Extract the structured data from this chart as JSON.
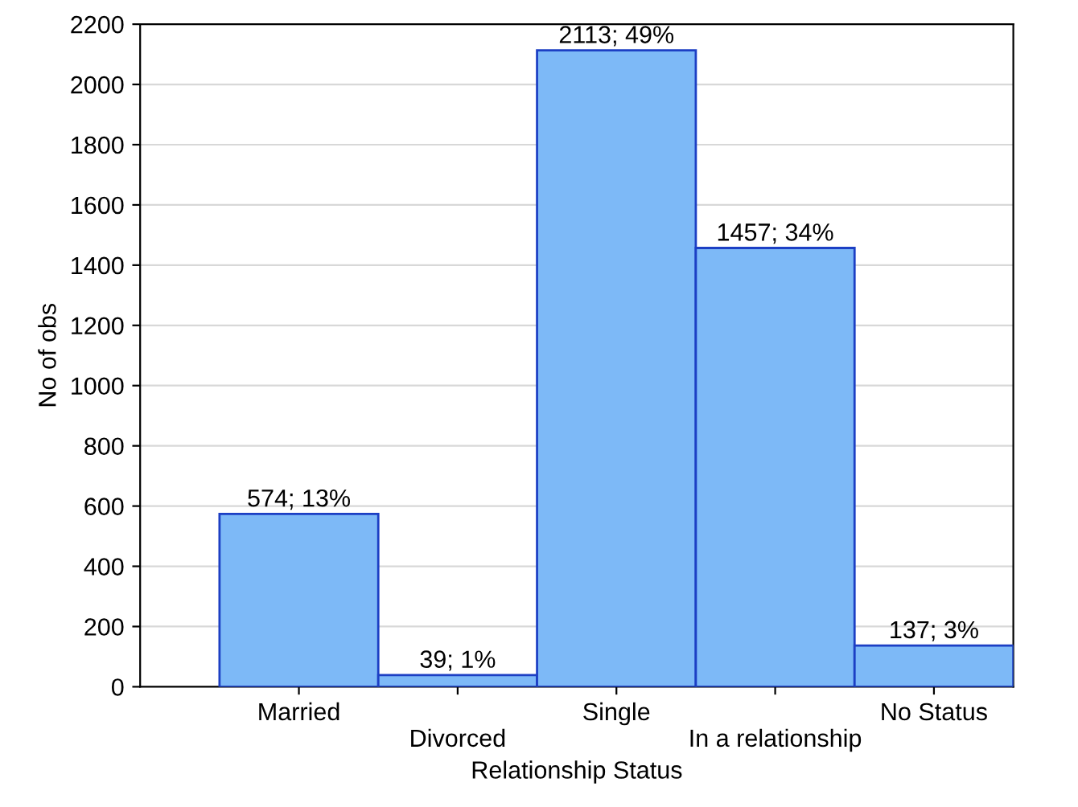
{
  "chart_data": {
    "type": "bar",
    "xlabel": "Relationship Status",
    "ylabel": "No of obs",
    "categories": [
      "Married",
      "Divorced",
      "Single",
      "In a relationship",
      "No Status"
    ],
    "values": [
      574,
      39,
      2113,
      1457,
      137
    ],
    "value_labels": [
      "574; 13%",
      "39; 1%",
      "2113; 49%",
      "1457; 34%",
      "137; 3%"
    ],
    "color": "#7db9f7",
    "ylim": [
      0,
      2200
    ],
    "yticks": [
      0,
      200,
      400,
      600,
      800,
      1000,
      1200,
      1400,
      1600,
      1800,
      2000,
      2200
    ],
    "grid": "y"
  }
}
